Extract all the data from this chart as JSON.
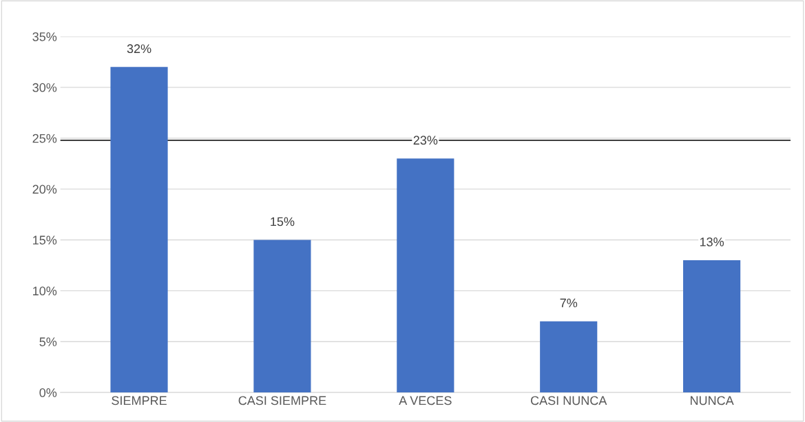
{
  "chart_data": {
    "type": "bar",
    "categories": [
      "SIEMPRE",
      "CASI SIEMPRE",
      "A VECES",
      "CASI NUNCA",
      "NUNCA"
    ],
    "values": [
      32,
      15,
      23,
      7,
      13
    ],
    "color": "#4472c4",
    "value_labels": [
      "32%",
      "15%",
      "23%",
      "7%",
      "13%"
    ],
    "ylim": [
      0,
      35
    ],
    "yticks": [
      {
        "value": 0,
        "label": "0%"
      },
      {
        "value": 5,
        "label": "5%"
      },
      {
        "value": 10,
        "label": "10%"
      },
      {
        "value": 15,
        "label": "15%"
      },
      {
        "value": 20,
        "label": "20%"
      },
      {
        "value": 25,
        "label": "25%"
      },
      {
        "value": 30,
        "label": "30%"
      },
      {
        "value": 35,
        "label": "35%"
      }
    ],
    "grid": "y",
    "ref_lines": [
      {
        "axis": "y",
        "value": 24.8,
        "color": "#000000"
      }
    ]
  }
}
